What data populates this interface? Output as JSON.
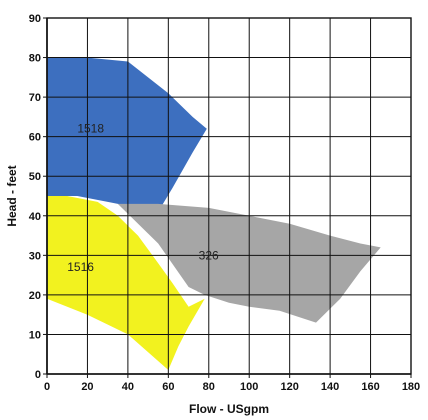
{
  "chart_data": {
    "type": "area",
    "xlabel": "Flow - USgpm",
    "ylabel": "Head - feet",
    "xlim": [
      0,
      180
    ],
    "ylim": [
      0,
      90
    ],
    "xticks": [
      0,
      20,
      40,
      60,
      80,
      100,
      120,
      140,
      160,
      180
    ],
    "yticks": [
      0,
      10,
      20,
      30,
      40,
      50,
      60,
      70,
      80,
      90
    ],
    "grid": true,
    "series": [
      {
        "name": "1518",
        "color": "#3d6fbf",
        "label_at": [
          15,
          61
        ],
        "points": [
          [
            0,
            80
          ],
          [
            20,
            80
          ],
          [
            40,
            79
          ],
          [
            60,
            71
          ],
          [
            72,
            65
          ],
          [
            79,
            62
          ],
          [
            72,
            56
          ],
          [
            62,
            47
          ],
          [
            55,
            41
          ],
          [
            45,
            42
          ],
          [
            30,
            43.5
          ],
          [
            15,
            45
          ],
          [
            0,
            45
          ]
        ]
      },
      {
        "name": "326",
        "color": "#a6a6a6",
        "label_at": [
          75,
          29
        ],
        "points": [
          [
            35,
            43
          ],
          [
            55,
            43
          ],
          [
            80,
            42
          ],
          [
            100,
            40
          ],
          [
            120,
            38
          ],
          [
            140,
            35
          ],
          [
            155,
            33
          ],
          [
            165,
            32
          ],
          [
            155,
            26
          ],
          [
            145,
            19
          ],
          [
            133,
            13
          ],
          [
            115,
            16
          ],
          [
            100,
            17
          ],
          [
            90,
            18
          ],
          [
            78,
            20
          ],
          [
            70,
            22
          ],
          [
            55,
            33
          ]
        ]
      },
      {
        "name": "1516",
        "color": "#f2f21f",
        "label_at": [
          10,
          26
        ],
        "points": [
          [
            0,
            45
          ],
          [
            10,
            45
          ],
          [
            25,
            43.5
          ],
          [
            35,
            40
          ],
          [
            45,
            35
          ],
          [
            55,
            28
          ],
          [
            62,
            23
          ],
          [
            70,
            17
          ],
          [
            78,
            19
          ],
          [
            70,
            12
          ],
          [
            65,
            7
          ],
          [
            60,
            1
          ],
          [
            40,
            10
          ],
          [
            20,
            15
          ],
          [
            0,
            19
          ]
        ]
      }
    ]
  }
}
